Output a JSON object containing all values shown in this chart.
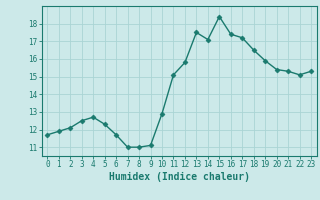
{
  "x": [
    0,
    1,
    2,
    3,
    4,
    5,
    6,
    7,
    8,
    9,
    10,
    11,
    12,
    13,
    14,
    15,
    16,
    17,
    18,
    19,
    20,
    21,
    22,
    23
  ],
  "y": [
    11.7,
    11.9,
    12.1,
    12.5,
    12.7,
    12.3,
    11.7,
    11.0,
    11.0,
    11.1,
    12.9,
    15.1,
    15.8,
    17.5,
    17.1,
    18.4,
    17.4,
    17.2,
    16.5,
    15.9,
    15.4,
    15.3,
    15.1,
    15.3
  ],
  "line_color": "#1a7a6e",
  "marker": "D",
  "marker_size": 2.5,
  "background_color": "#cce9e9",
  "grid_color": "#aad4d4",
  "xlabel": "Humidex (Indice chaleur)",
  "ylim": [
    10.5,
    19.0
  ],
  "xlim": [
    -0.5,
    23.5
  ],
  "yticks": [
    11,
    12,
    13,
    14,
    15,
    16,
    17,
    18
  ],
  "xticks": [
    0,
    1,
    2,
    3,
    4,
    5,
    6,
    7,
    8,
    9,
    10,
    11,
    12,
    13,
    14,
    15,
    16,
    17,
    18,
    19,
    20,
    21,
    22,
    23
  ],
  "tick_fontsize": 5.5,
  "label_fontsize": 7.0
}
